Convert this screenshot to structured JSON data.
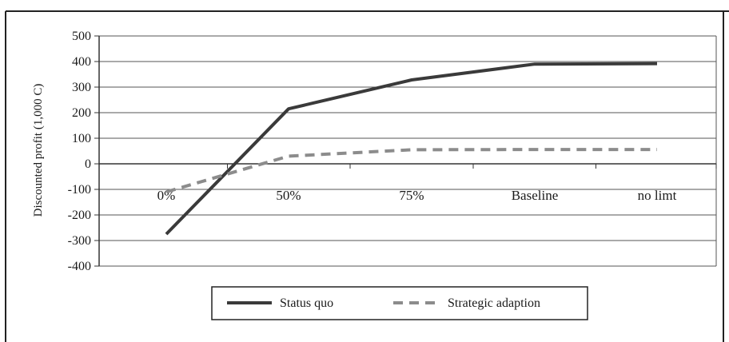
{
  "chart_data": {
    "type": "line",
    "ylabel": "Discounted profit (1,000 C)",
    "xlabel": "",
    "title": "",
    "categories": [
      "0%",
      "50%",
      "75%",
      "Baseline",
      "no limt"
    ],
    "ylim": [
      -400,
      500
    ],
    "yticks": [
      500,
      400,
      300,
      200,
      100,
      0,
      -100,
      -200,
      -300,
      -400
    ],
    "grid": true,
    "legend_position": "bottom",
    "series": [
      {
        "name": "Status quo",
        "values": [
          -275,
          215,
          328,
          390,
          392
        ],
        "color": "#3a3a3a",
        "line_style": "solid"
      },
      {
        "name": "Strategic adaption",
        "values": [
          -110,
          30,
          55,
          56,
          56
        ],
        "color": "#8c8c8c",
        "line_style": "dashed"
      }
    ]
  }
}
